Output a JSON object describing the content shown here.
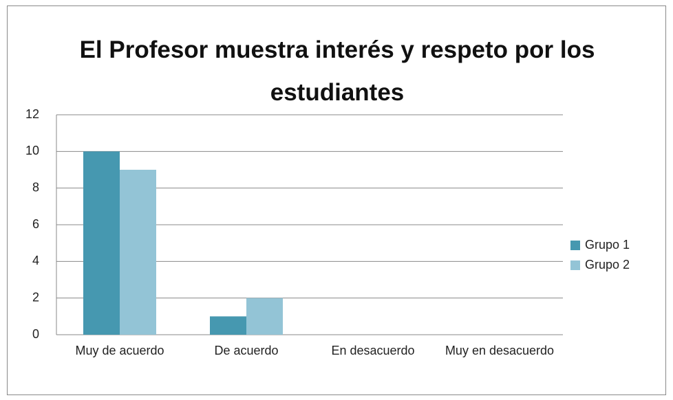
{
  "chart_data": {
    "type": "bar",
    "title": "El Profesor muestra interés y respeto por los estudiantes",
    "categories": [
      "Muy de acuerdo",
      "De acuerdo",
      "En desacuerdo",
      "Muy en desacuerdo"
    ],
    "series": [
      {
        "name": "Grupo 1",
        "color": "#4698b0",
        "values": [
          10,
          1,
          0,
          0
        ]
      },
      {
        "name": "Grupo 2",
        "color": "#93c4d6",
        "values": [
          9,
          2,
          0,
          0
        ]
      }
    ],
    "ylim": [
      0,
      12
    ],
    "yticks": [
      0,
      2,
      4,
      6,
      8,
      10,
      12
    ],
    "grid": true,
    "legend": "right"
  }
}
